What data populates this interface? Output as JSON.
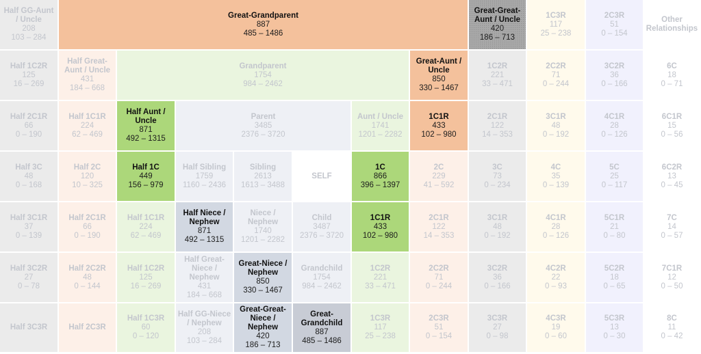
{
  "chart_data": {
    "type": "table",
    "title": "Shared cM Project relationship chart (average cM and range)",
    "layout": {
      "columns": 12,
      "rows": 7,
      "legend": "none",
      "grid": true
    },
    "cells": [
      {
        "id": "half-gg-aunt-uncle",
        "name": "Half GG-Aunt / Uncle",
        "avg": "208",
        "range": "103 – 284",
        "col": 0,
        "row": 0,
        "colspan": 1,
        "rowspan": 1,
        "style": "c-gray",
        "highlight": false
      },
      {
        "id": "great-grandparent",
        "name": "Great-Grandparent",
        "avg": "887",
        "range": "485 – 1486",
        "col": 1,
        "row": 0,
        "colspan": 7,
        "rowspan": 1,
        "style": "c-orange",
        "highlight": true
      },
      {
        "id": "great-great-aunt-uncle",
        "name": "Great-Great-Aunt / Uncle",
        "avg": "420",
        "range": "186 – 713",
        "col": 8,
        "row": 0,
        "colspan": 1,
        "rowspan": 1,
        "style": "c-dark",
        "highlight": true
      },
      {
        "id": "1c3r-top",
        "name": "1C3R",
        "avg": "117",
        "range": "25 – 238",
        "col": 9,
        "row": 0,
        "colspan": 1,
        "rowspan": 1,
        "style": "c-lyellow",
        "highlight": false
      },
      {
        "id": "2c3r-top",
        "name": "2C3R",
        "avg": "51",
        "range": "0 – 154",
        "col": 10,
        "row": 0,
        "colspan": 1,
        "rowspan": 1,
        "style": "c-lviolet",
        "highlight": false
      },
      {
        "id": "other-relationships",
        "name": "Other Relationships",
        "avg": "",
        "range": "",
        "col": 11,
        "row": 0,
        "colspan": 1,
        "rowspan": 1,
        "style": "c-white",
        "highlight": false
      },
      {
        "id": "half-1c2r-top",
        "name": "Half 1C2R",
        "avg": "125",
        "range": "16 – 269",
        "col": 0,
        "row": 1,
        "colspan": 1,
        "rowspan": 1,
        "style": "c-gray",
        "highlight": false
      },
      {
        "id": "half-great-aunt-uncle",
        "name": "Half Great-Aunt / Uncle",
        "avg": "431",
        "range": "184 – 668",
        "col": 1,
        "row": 1,
        "colspan": 1,
        "rowspan": 1,
        "style": "c-peach",
        "highlight": false
      },
      {
        "id": "grandparent",
        "name": "Grandparent",
        "avg": "1754",
        "range": "984 – 2462",
        "col": 2,
        "row": 1,
        "colspan": 5,
        "rowspan": 1,
        "style": "c-lgreen",
        "highlight": false
      },
      {
        "id": "great-aunt-uncle",
        "name": "Great-Aunt / Uncle",
        "avg": "850",
        "range": "330 – 1467",
        "col": 7,
        "row": 1,
        "colspan": 1,
        "rowspan": 1,
        "style": "c-orange",
        "highlight": true
      },
      {
        "id": "1c2r-top",
        "name": "1C2R",
        "avg": "221",
        "range": "33 – 471",
        "col": 8,
        "row": 1,
        "colspan": 1,
        "rowspan": 1,
        "style": "c-gray",
        "highlight": false
      },
      {
        "id": "2c2r-top",
        "name": "2C2R",
        "avg": "71",
        "range": "0 – 244",
        "col": 9,
        "row": 1,
        "colspan": 1,
        "rowspan": 1,
        "style": "c-lyellow",
        "highlight": false
      },
      {
        "id": "3c2r-top",
        "name": "3C2R",
        "avg": "36",
        "range": "0 – 166",
        "col": 10,
        "row": 1,
        "colspan": 1,
        "rowspan": 1,
        "style": "c-lviolet",
        "highlight": false
      },
      {
        "id": "6c",
        "name": "6C",
        "avg": "18",
        "range": "0 – 71",
        "col": 11,
        "row": 1,
        "colspan": 1,
        "rowspan": 1,
        "style": "c-white",
        "highlight": false
      },
      {
        "id": "half-2c1r-top",
        "name": "Half 2C1R",
        "avg": "66",
        "range": "0 – 190",
        "col": 0,
        "row": 2,
        "colspan": 1,
        "rowspan": 1,
        "style": "c-gray",
        "highlight": false
      },
      {
        "id": "half-1c1r-top",
        "name": "Half 1C1R",
        "avg": "224",
        "range": "62 – 469",
        "col": 1,
        "row": 2,
        "colspan": 1,
        "rowspan": 1,
        "style": "c-peach",
        "highlight": false
      },
      {
        "id": "half-aunt-uncle",
        "name": "Half Aunt / Uncle",
        "avg": "871",
        "range": "492 – 1315",
        "col": 2,
        "row": 2,
        "colspan": 1,
        "rowspan": 1,
        "style": "c-green",
        "highlight": true
      },
      {
        "id": "parent",
        "name": "Parent",
        "avg": "3485",
        "range": "2376 – 3720",
        "col": 3,
        "row": 2,
        "colspan": 3,
        "rowspan": 1,
        "style": "c-lslate",
        "highlight": false
      },
      {
        "id": "aunt-uncle",
        "name": "Aunt / Uncle",
        "avg": "1741",
        "range": "1201 – 2282",
        "col": 6,
        "row": 2,
        "colspan": 1,
        "rowspan": 1,
        "style": "c-lgreen",
        "highlight": false
      },
      {
        "id": "1c1r-top",
        "name": "1C1R",
        "avg": "433",
        "range": "102 – 980",
        "col": 7,
        "row": 2,
        "colspan": 1,
        "rowspan": 1,
        "style": "c-orange",
        "highlight": true
      },
      {
        "id": "2c1r-top",
        "name": "2C1R",
        "avg": "122",
        "range": "14 – 353",
        "col": 8,
        "row": 2,
        "colspan": 1,
        "rowspan": 1,
        "style": "c-gray",
        "highlight": false
      },
      {
        "id": "3c1r-top",
        "name": "3C1R",
        "avg": "48",
        "range": "0 – 192",
        "col": 9,
        "row": 2,
        "colspan": 1,
        "rowspan": 1,
        "style": "c-lyellow",
        "highlight": false
      },
      {
        "id": "4c1r-top",
        "name": "4C1R",
        "avg": "28",
        "range": "0 – 126",
        "col": 10,
        "row": 2,
        "colspan": 1,
        "rowspan": 1,
        "style": "c-lviolet",
        "highlight": false
      },
      {
        "id": "6c1r",
        "name": "6C1R",
        "avg": "15",
        "range": "0 – 56",
        "col": 11,
        "row": 2,
        "colspan": 1,
        "rowspan": 1,
        "style": "c-white",
        "highlight": false
      },
      {
        "id": "half-3c",
        "name": "Half 3C",
        "avg": "48",
        "range": "0 – 168",
        "col": 0,
        "row": 3,
        "colspan": 1,
        "rowspan": 1,
        "style": "c-gray",
        "highlight": false
      },
      {
        "id": "half-2c",
        "name": "Half 2C",
        "avg": "120",
        "range": "10 – 325",
        "col": 1,
        "row": 3,
        "colspan": 1,
        "rowspan": 1,
        "style": "c-peach",
        "highlight": false
      },
      {
        "id": "half-1c",
        "name": "Half 1C",
        "avg": "449",
        "range": "156 – 979",
        "col": 2,
        "row": 3,
        "colspan": 1,
        "rowspan": 1,
        "style": "c-green",
        "highlight": true
      },
      {
        "id": "half-sibling",
        "name": "Half Sibling",
        "avg": "1759",
        "range": "1160 – 2436",
        "col": 3,
        "row": 3,
        "colspan": 1,
        "rowspan": 1,
        "style": "c-lslate",
        "highlight": false
      },
      {
        "id": "sibling",
        "name": "Sibling",
        "avg": "2613",
        "range": "1613 – 3488",
        "col": 4,
        "row": 3,
        "colspan": 1,
        "rowspan": 1,
        "style": "c-lslate",
        "highlight": false
      },
      {
        "id": "self",
        "name": "SELF",
        "avg": "",
        "range": "",
        "col": 5,
        "row": 3,
        "colspan": 1,
        "rowspan": 1,
        "style": "c-self",
        "highlight": false
      },
      {
        "id": "1c",
        "name": "1C",
        "avg": "866",
        "range": "396 – 1397",
        "col": 6,
        "row": 3,
        "colspan": 1,
        "rowspan": 1,
        "style": "c-green",
        "highlight": true
      },
      {
        "id": "2c",
        "name": "2C",
        "avg": "229",
        "range": "41 – 592",
        "col": 7,
        "row": 3,
        "colspan": 1,
        "rowspan": 1,
        "style": "c-peach",
        "highlight": false
      },
      {
        "id": "3c",
        "name": "3C",
        "avg": "73",
        "range": "0 – 234",
        "col": 8,
        "row": 3,
        "colspan": 1,
        "rowspan": 1,
        "style": "c-gray",
        "highlight": false
      },
      {
        "id": "4c",
        "name": "4C",
        "avg": "35",
        "range": "0 – 139",
        "col": 9,
        "row": 3,
        "colspan": 1,
        "rowspan": 1,
        "style": "c-lyellow",
        "highlight": false
      },
      {
        "id": "5c",
        "name": "5C",
        "avg": "25",
        "range": "0 – 117",
        "col": 10,
        "row": 3,
        "colspan": 1,
        "rowspan": 1,
        "style": "c-lviolet",
        "highlight": false
      },
      {
        "id": "6c2r",
        "name": "6C2R",
        "avg": "13",
        "range": "0 – 45",
        "col": 11,
        "row": 3,
        "colspan": 1,
        "rowspan": 1,
        "style": "c-white",
        "highlight": false
      },
      {
        "id": "half-3c1r",
        "name": "Half 3C1R",
        "avg": "37",
        "range": "0 – 139",
        "col": 0,
        "row": 4,
        "colspan": 1,
        "rowspan": 1,
        "style": "c-gray",
        "highlight": false
      },
      {
        "id": "half-2c1r-bottom",
        "name": "Half 2C1R",
        "avg": "66",
        "range": "0 – 190",
        "col": 1,
        "row": 4,
        "colspan": 1,
        "rowspan": 1,
        "style": "c-peach",
        "highlight": false
      },
      {
        "id": "half-1c1r-bottom",
        "name": "Half 1C1R",
        "avg": "224",
        "range": "62 – 469",
        "col": 2,
        "row": 4,
        "colspan": 1,
        "rowspan": 1,
        "style": "c-lgreen",
        "highlight": false
      },
      {
        "id": "half-niece-nephew",
        "name": "Half Niece / Nephew",
        "avg": "871",
        "range": "492 – 1315",
        "col": 3,
        "row": 4,
        "colspan": 1,
        "rowspan": 1,
        "style": "c-slate",
        "highlight": true
      },
      {
        "id": "niece-nephew",
        "name": "Niece / Nephew",
        "avg": "1740",
        "range": "1201 – 2282",
        "col": 4,
        "row": 4,
        "colspan": 1,
        "rowspan": 1,
        "style": "c-lslate",
        "highlight": false
      },
      {
        "id": "child",
        "name": "Child",
        "avg": "3487",
        "range": "2376 – 3720",
        "col": 5,
        "row": 4,
        "colspan": 1,
        "rowspan": 1,
        "style": "c-lslate",
        "highlight": false
      },
      {
        "id": "1c1r-bottom",
        "name": "1C1R",
        "avg": "433",
        "range": "102 – 980",
        "col": 6,
        "row": 4,
        "colspan": 1,
        "rowspan": 1,
        "style": "c-green",
        "highlight": true
      },
      {
        "id": "2c1r-bottom",
        "name": "2C1R",
        "avg": "122",
        "range": "14 – 353",
        "col": 7,
        "row": 4,
        "colspan": 1,
        "rowspan": 1,
        "style": "c-peach",
        "highlight": false
      },
      {
        "id": "3c1r-bottom",
        "name": "3C1R",
        "avg": "48",
        "range": "0 – 192",
        "col": 8,
        "row": 4,
        "colspan": 1,
        "rowspan": 1,
        "style": "c-gray",
        "highlight": false
      },
      {
        "id": "4c1r-bottom",
        "name": "4C1R",
        "avg": "28",
        "range": "0 – 126",
        "col": 9,
        "row": 4,
        "colspan": 1,
        "rowspan": 1,
        "style": "c-lyellow",
        "highlight": false
      },
      {
        "id": "5c1r",
        "name": "5C1R",
        "avg": "21",
        "range": "0 – 80",
        "col": 10,
        "row": 4,
        "colspan": 1,
        "rowspan": 1,
        "style": "c-lviolet",
        "highlight": false
      },
      {
        "id": "7c",
        "name": "7C",
        "avg": "14",
        "range": "0 – 57",
        "col": 11,
        "row": 4,
        "colspan": 1,
        "rowspan": 1,
        "style": "c-white",
        "highlight": false
      },
      {
        "id": "half-3c2r",
        "name": "Half 3C2R",
        "avg": "27",
        "range": "0 – 78",
        "col": 0,
        "row": 5,
        "colspan": 1,
        "rowspan": 1,
        "style": "c-gray",
        "highlight": false
      },
      {
        "id": "half-2c2r",
        "name": "Half 2C2R",
        "avg": "48",
        "range": "0 – 144",
        "col": 1,
        "row": 5,
        "colspan": 1,
        "rowspan": 1,
        "style": "c-peach",
        "highlight": false
      },
      {
        "id": "half-1c2r-bottom",
        "name": "Half 1C2R",
        "avg": "125",
        "range": "16 – 269",
        "col": 2,
        "row": 5,
        "colspan": 1,
        "rowspan": 1,
        "style": "c-lgreen",
        "highlight": false
      },
      {
        "id": "half-great-niece-nephew",
        "name": "Half Great-Niece / Nephew",
        "avg": "431",
        "range": "184 – 668",
        "col": 3,
        "row": 5,
        "colspan": 1,
        "rowspan": 1,
        "style": "c-lslate",
        "highlight": false
      },
      {
        "id": "great-niece-nephew",
        "name": "Great-Niece / Nephew",
        "avg": "850",
        "range": "330 – 1467",
        "col": 4,
        "row": 5,
        "colspan": 1,
        "rowspan": 1,
        "style": "c-slate",
        "highlight": true
      },
      {
        "id": "grandchild",
        "name": "Grandchild",
        "avg": "1754",
        "range": "984 – 2462",
        "col": 5,
        "row": 5,
        "colspan": 1,
        "rowspan": 1,
        "style": "c-lslate",
        "highlight": false
      },
      {
        "id": "1c2r-bottom",
        "name": "1C2R",
        "avg": "221",
        "range": "33 – 471",
        "col": 6,
        "row": 5,
        "colspan": 1,
        "rowspan": 1,
        "style": "c-lgreen",
        "highlight": false
      },
      {
        "id": "2c2r-bottom",
        "name": "2C2R",
        "avg": "71",
        "range": "0 – 244",
        "col": 7,
        "row": 5,
        "colspan": 1,
        "rowspan": 1,
        "style": "c-peach",
        "highlight": false
      },
      {
        "id": "3c2r-bottom",
        "name": "3C2R",
        "avg": "36",
        "range": "0 – 166",
        "col": 8,
        "row": 5,
        "colspan": 1,
        "rowspan": 1,
        "style": "c-gray",
        "highlight": false
      },
      {
        "id": "4c2r",
        "name": "4C2R",
        "avg": "22",
        "range": "0 – 93",
        "col": 9,
        "row": 5,
        "colspan": 1,
        "rowspan": 1,
        "style": "c-lyellow",
        "highlight": false
      },
      {
        "id": "5c2r",
        "name": "5C2R",
        "avg": "18",
        "range": "0 – 65",
        "col": 10,
        "row": 5,
        "colspan": 1,
        "rowspan": 1,
        "style": "c-lviolet",
        "highlight": false
      },
      {
        "id": "7c1r",
        "name": "7C1R",
        "avg": "12",
        "range": "0 – 50",
        "col": 11,
        "row": 5,
        "colspan": 1,
        "rowspan": 1,
        "style": "c-white",
        "highlight": false
      },
      {
        "id": "half-3c3r",
        "name": "Half 3C3R",
        "avg": "",
        "range": "",
        "col": 0,
        "row": 6,
        "colspan": 1,
        "rowspan": 1,
        "style": "c-gray",
        "highlight": false
      },
      {
        "id": "half-2c3r",
        "name": "Half 2C3R",
        "avg": "",
        "range": "",
        "col": 1,
        "row": 6,
        "colspan": 1,
        "rowspan": 1,
        "style": "c-peach",
        "highlight": false
      },
      {
        "id": "half-1c3r",
        "name": "Half 1C3R",
        "avg": "60",
        "range": "0 – 120",
        "col": 2,
        "row": 6,
        "colspan": 1,
        "rowspan": 1,
        "style": "c-lgreen",
        "highlight": false
      },
      {
        "id": "half-gg-niece-nephew",
        "name": "Half GG-Niece / Nephew",
        "avg": "208",
        "range": "103 – 284",
        "col": 3,
        "row": 6,
        "colspan": 1,
        "rowspan": 1,
        "style": "c-lslate",
        "highlight": false
      },
      {
        "id": "great-great-niece-nephew",
        "name": "Great-Great-Niece / Nephew",
        "avg": "420",
        "range": "186 – 713",
        "col": 4,
        "row": 6,
        "colspan": 1,
        "rowspan": 1,
        "style": "c-slate",
        "highlight": true
      },
      {
        "id": "great-grandchild",
        "name": "Great-Grandchild",
        "avg": "887",
        "range": "485 – 1486",
        "col": 5,
        "row": 6,
        "colspan": 1,
        "rowspan": 1,
        "style": "c-slate2",
        "highlight": true
      },
      {
        "id": "1c3r-bottom",
        "name": "1C3R",
        "avg": "117",
        "range": "25 – 238",
        "col": 6,
        "row": 6,
        "colspan": 1,
        "rowspan": 1,
        "style": "c-lgreen",
        "highlight": false
      },
      {
        "id": "2c3r-bottom",
        "name": "2C3R",
        "avg": "51",
        "range": "0 – 154",
        "col": 7,
        "row": 6,
        "colspan": 1,
        "rowspan": 1,
        "style": "c-peach",
        "highlight": false
      },
      {
        "id": "3c3r",
        "name": "3C3R",
        "avg": "27",
        "range": "0 – 98",
        "col": 8,
        "row": 6,
        "colspan": 1,
        "rowspan": 1,
        "style": "c-gray",
        "highlight": false
      },
      {
        "id": "4c3r",
        "name": "4C3R",
        "avg": "19",
        "range": "0 – 60",
        "col": 9,
        "row": 6,
        "colspan": 1,
        "rowspan": 1,
        "style": "c-lyellow",
        "highlight": false
      },
      {
        "id": "5c3r",
        "name": "5C3R",
        "avg": "13",
        "range": "0 – 30",
        "col": 10,
        "row": 6,
        "colspan": 1,
        "rowspan": 1,
        "style": "c-lviolet",
        "highlight": false
      },
      {
        "id": "8c",
        "name": "8C",
        "avg": "11",
        "range": "0 – 42",
        "col": 11,
        "row": 6,
        "colspan": 1,
        "rowspan": 1,
        "style": "c-white",
        "highlight": false
      }
    ]
  },
  "geometry": {
    "col_edges": [
      0,
      86,
      171,
      257,
      342,
      428,
      514,
      599,
      685,
      770,
      856,
      941,
      1024
    ],
    "row_edges": [
      0,
      74,
      148,
      222,
      296,
      370,
      444,
      517
    ],
    "gap": 2
  },
  "colors": {
    "highlight_orange": "#f4c19c",
    "highlight_green": "#acd77a",
    "highlight_slate": "#d2d8e2",
    "highlight_dark": "#a8a8a8",
    "muted_text": "#c3c6cd",
    "dark_text": "#1c1c1c"
  }
}
